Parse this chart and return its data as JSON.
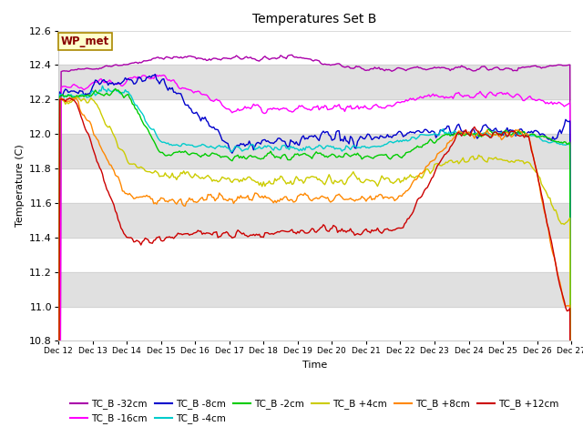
{
  "title": "Temperatures Set B",
  "xlabel": "Time",
  "ylabel": "Temperature (C)",
  "ylim": [
    10.8,
    12.6
  ],
  "xlim": [
    0,
    360
  ],
  "x_tick_labels": [
    "Dec 12",
    "Dec 13",
    "Dec 14",
    "Dec 15",
    "Dec 16",
    "Dec 17",
    "Dec 18",
    "Dec 19",
    "Dec 20",
    "Dec 21",
    "Dec 22",
    "Dec 23",
    "Dec 24",
    "Dec 25",
    "Dec 26",
    "Dec 27"
  ],
  "x_tick_positions": [
    0,
    24,
    48,
    72,
    96,
    120,
    144,
    168,
    192,
    216,
    240,
    264,
    288,
    312,
    336,
    360
  ],
  "colors": {
    "TC_B -32cm": "#aa00aa",
    "TC_B -16cm": "#ff00ff",
    "TC_B -8cm": "#0000cc",
    "TC_B -4cm": "#00cccc",
    "TC_B -2cm": "#00cc00",
    "TC_B +4cm": "#cccc00",
    "TC_B +8cm": "#ff8800",
    "TC_B +12cm": "#cc0000"
  },
  "wp_met_box_color": "#ffffcc",
  "wp_met_text_color": "#880000",
  "background_stripe_color": "#e0e0e0",
  "y_tick_positions": [
    10.8,
    11.0,
    11.2,
    11.4,
    11.6,
    11.8,
    12.0,
    12.2,
    12.4,
    12.6
  ],
  "figsize": [
    6.4,
    4.8
  ],
  "dpi": 100
}
